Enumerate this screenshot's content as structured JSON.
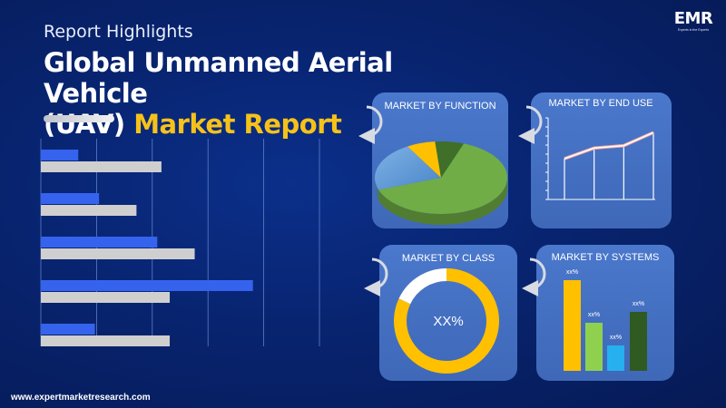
{
  "header": {
    "subtitle": "Report Highlights",
    "title_line1": "Global Unmanned Aerial Vehicle",
    "title_line2_prefix": "(UAV) ",
    "title_line2_highlight": "Market Report"
  },
  "logo": {
    "brand": "EMR",
    "tagline": "Experts in the Experts"
  },
  "footer": {
    "url": "www.expertmarketresearch.com"
  },
  "colors": {
    "background": "#082470",
    "accent_yellow": "#f6c21a",
    "bar_blue": "#3563ee",
    "bar_gray": "#cfcfcf",
    "panel": "#4472c4"
  },
  "chart_data": [
    {
      "type": "bar",
      "orientation": "horizontal",
      "series": [
        {
          "values": [
            0.9,
            1.4,
            2.8,
            5.1,
            1.3
          ]
        },
        {
          "values": [
            2.9,
            2.3,
            3.7,
            3.1,
            3.1
          ]
        }
      ],
      "xlim": [
        0,
        6.7
      ],
      "grid": true
    },
    {
      "type": "pie",
      "title": "MARKET BY FUNCTION",
      "values": [
        64,
        22,
        7,
        7
      ],
      "colors": [
        "#70ad47",
        "#5b9bd5",
        "#ffc000",
        "#3f6f28"
      ]
    },
    {
      "type": "line",
      "title": "MARKET BY END USE",
      "values": [
        5,
        6.3,
        6.6,
        8.2
      ],
      "ylim": [
        0,
        10
      ]
    },
    {
      "type": "pie",
      "title": "MARKET BY CLASS",
      "center_label": "XX%",
      "values": [
        82,
        18
      ],
      "colors": [
        "#ffc000",
        "#ffffff"
      ]
    },
    {
      "type": "bar",
      "title": "MARKET BY SYSTEMS",
      "values": [
        10,
        5.3,
        2.8,
        6.5
      ],
      "data_labels": [
        "xx%",
        "xx%",
        "xx%",
        "xx%"
      ],
      "colors": [
        "#ffc000",
        "#8fd14f",
        "#26b0f0",
        "#2f5a21"
      ]
    }
  ]
}
